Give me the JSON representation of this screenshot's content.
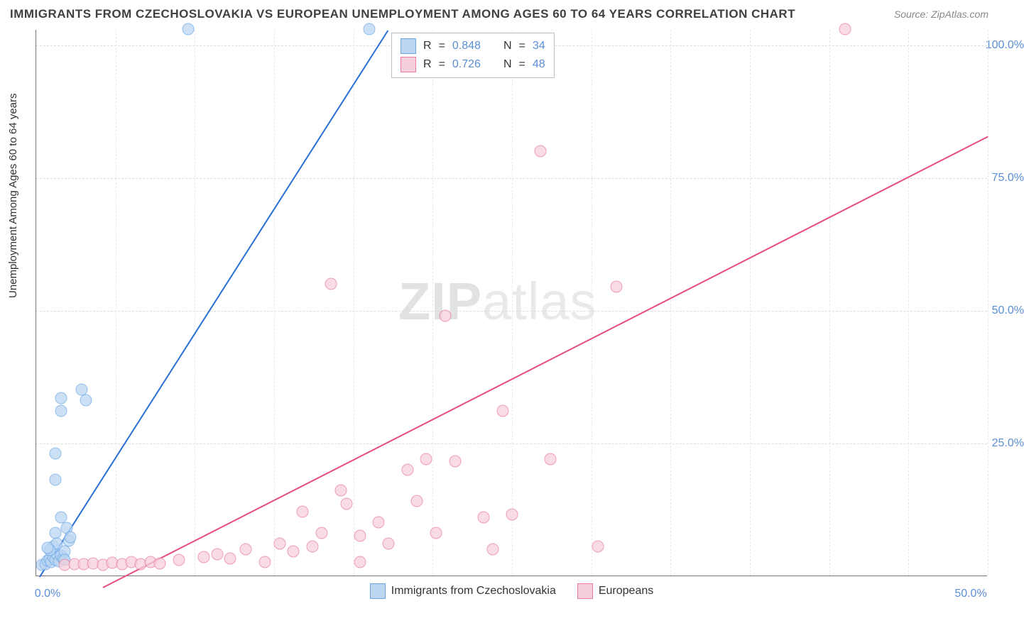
{
  "header": {
    "title": "IMMIGRANTS FROM CZECHOSLOVAKIA VS EUROPEAN UNEMPLOYMENT AMONG AGES 60 TO 64 YEARS CORRELATION CHART",
    "source_label": "Source: ZipAtlas.com"
  },
  "chart": {
    "type": "scatter",
    "background_color": "#ffffff",
    "grid_color": "#dcdcdc",
    "axis_color": "#777777",
    "label_color": "#5b8fd6",
    "label_fontsize": 16,
    "title_color": "#404040",
    "yaxis_title": "Unemployment Among Ages 60 to 64 years",
    "xlim": [
      0,
      50
    ],
    "ylim": [
      0,
      103
    ],
    "xtick_labels": [
      "0.0%",
      "50.0%"
    ],
    "xtick_positions": [
      0,
      50
    ],
    "ytick_labels": [
      "25.0%",
      "50.0%",
      "75.0%",
      "100.0%"
    ],
    "ytick_positions": [
      25,
      50,
      75,
      100
    ],
    "grid_v_positions": [
      4.17,
      8.33,
      12.5,
      16.67,
      20.83,
      25,
      29.17,
      33.33,
      37.5,
      41.67,
      45.83,
      50
    ],
    "watermark": {
      "zip": "ZIP",
      "rest": "atlas"
    },
    "series": [
      {
        "name": "Immigrants from Czechoslovakia",
        "marker_fill": "#bcd6f2",
        "marker_stroke": "#6ca7e6",
        "marker_size": 17,
        "marker_opacity": 0.75,
        "line_color": "#2a6fd6",
        "line_width": 2.3,
        "trend": {
          "x1": 0.2,
          "y1": 0,
          "x2": 18.5,
          "y2": 103
        },
        "R": 0.848,
        "N": 34,
        "points": [
          [
            0.3,
            2.0
          ],
          [
            0.5,
            2.2
          ],
          [
            0.6,
            2.8
          ],
          [
            0.7,
            3.1
          ],
          [
            0.8,
            2.5
          ],
          [
            0.9,
            3.5
          ],
          [
            1.0,
            3.0
          ],
          [
            1.1,
            4.0
          ],
          [
            1.2,
            2.7
          ],
          [
            1.3,
            3.8
          ],
          [
            1.4,
            3.2
          ],
          [
            1.5,
            4.5
          ],
          [
            1.5,
            2.9
          ],
          [
            0.9,
            5.5
          ],
          [
            1.0,
            8.0
          ],
          [
            1.1,
            6.0
          ],
          [
            0.7,
            4.8
          ],
          [
            0.6,
            5.2
          ],
          [
            1.3,
            11.0
          ],
          [
            1.6,
            9.0
          ],
          [
            1.7,
            6.5
          ],
          [
            1.8,
            7.2
          ],
          [
            1.0,
            18.0
          ],
          [
            1.0,
            23.0
          ],
          [
            1.3,
            31.0
          ],
          [
            1.3,
            33.5
          ],
          [
            2.4,
            35.0
          ],
          [
            2.6,
            33.0
          ],
          [
            8.0,
            103.0
          ],
          [
            17.5,
            103.0
          ]
        ]
      },
      {
        "name": "Europeans",
        "marker_fill": "#f6cfda",
        "marker_stroke": "#e97ba1",
        "marker_size": 17,
        "marker_opacity": 0.75,
        "line_color": "#e64b86",
        "line_width": 2.3,
        "trend": {
          "x1": 3.5,
          "y1": -2,
          "x2": 50,
          "y2": 83
        },
        "R": 0.726,
        "N": 48,
        "points": [
          [
            1.5,
            2.0
          ],
          [
            2.0,
            2.2
          ],
          [
            2.5,
            2.1
          ],
          [
            3.0,
            2.3
          ],
          [
            3.5,
            2.0
          ],
          [
            4.0,
            2.4
          ],
          [
            4.5,
            2.2
          ],
          [
            5.0,
            2.5
          ],
          [
            5.5,
            2.1
          ],
          [
            6.0,
            2.6
          ],
          [
            6.5,
            2.3
          ],
          [
            7.5,
            3.0
          ],
          [
            8.8,
            3.5
          ],
          [
            9.5,
            4.0
          ],
          [
            10.2,
            3.2
          ],
          [
            11.0,
            5.0
          ],
          [
            12.0,
            2.5
          ],
          [
            12.8,
            6.0
          ],
          [
            13.5,
            4.5
          ],
          [
            14.0,
            12.0
          ],
          [
            14.5,
            5.5
          ],
          [
            15.0,
            8.0
          ],
          [
            16.0,
            16.0
          ],
          [
            16.3,
            13.5
          ],
          [
            17.0,
            7.5
          ],
          [
            17.0,
            2.5
          ],
          [
            18.0,
            10.0
          ],
          [
            18.5,
            6.0
          ],
          [
            19.5,
            20.0
          ],
          [
            20.0,
            14.0
          ],
          [
            20.5,
            22.0
          ],
          [
            21.0,
            8.0
          ],
          [
            22.0,
            21.5
          ],
          [
            23.5,
            11.0
          ],
          [
            24.0,
            5.0
          ],
          [
            24.5,
            31.0
          ],
          [
            25.0,
            11.5
          ],
          [
            27.0,
            22.0
          ],
          [
            29.5,
            5.5
          ],
          [
            15.5,
            55.0
          ],
          [
            21.5,
            49.0
          ],
          [
            30.5,
            54.5
          ],
          [
            26.5,
            80.0
          ],
          [
            42.5,
            103.0
          ]
        ]
      }
    ],
    "legend_top": {
      "rows": [
        {
          "swatch_fill": "#bcd6f2",
          "swatch_stroke": "#6ca7e6",
          "r_label": "R",
          "r_eq": "=",
          "r_val": "0.848",
          "n_label": "N",
          "n_eq": "=",
          "n_val": "34"
        },
        {
          "swatch_fill": "#f6cfda",
          "swatch_stroke": "#e97ba1",
          "r_label": "R",
          "r_eq": "=",
          "r_val": "0.726",
          "n_label": "N",
          "n_eq": "=",
          "n_val": "48"
        }
      ]
    }
  }
}
